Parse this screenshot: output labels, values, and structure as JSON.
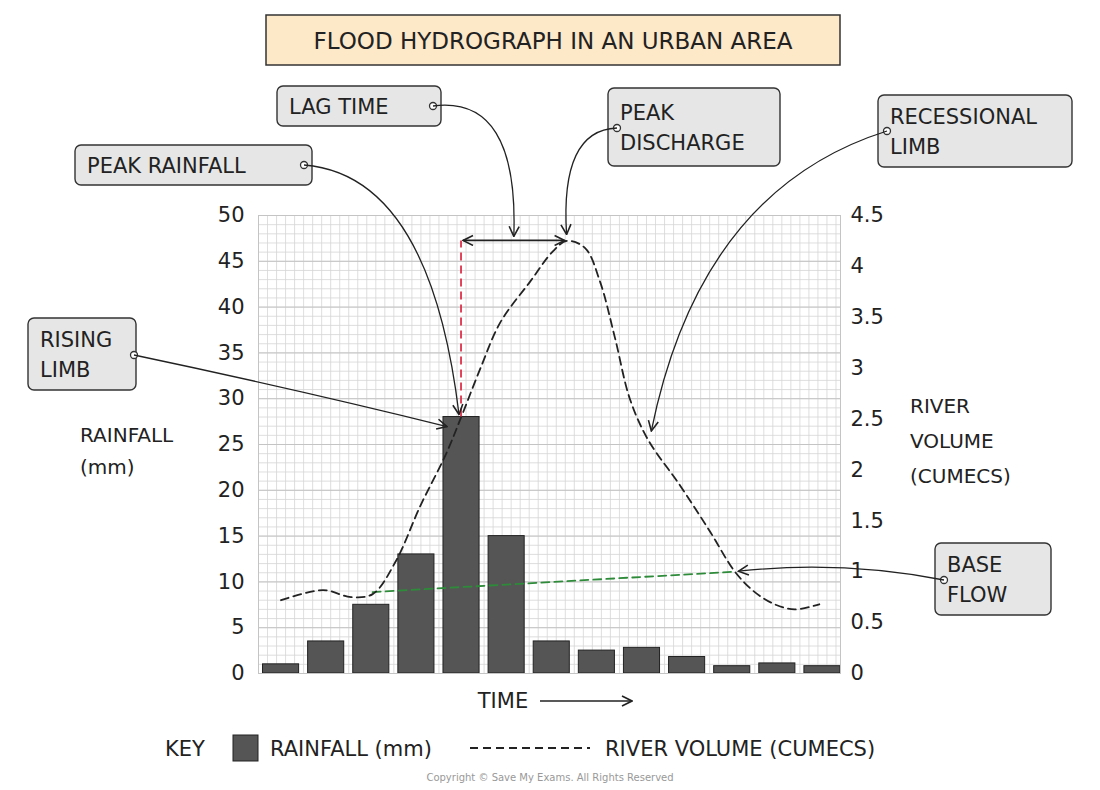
{
  "chart_data": {
    "type": "bar",
    "title": "FLOOD HYDROGRAPH IN AN URBAN AREA",
    "x_label": "TIME",
    "y_label": "RAINFALL (mm)",
    "y2_label": "RIVER VOLUME (CUMECS)",
    "categories": [
      null,
      null,
      null,
      null,
      null,
      null,
      null,
      null,
      null,
      null,
      null,
      null,
      null
    ],
    "xlim": [
      -0.5,
      12.4
    ],
    "ylim": [
      0,
      50
    ],
    "yticks": [
      0,
      5,
      10,
      15,
      20,
      25,
      30,
      35,
      40,
      45,
      50
    ],
    "y2lim": [
      0,
      4.5
    ],
    "y2ticks": [
      0,
      0.5,
      1,
      1.5,
      2,
      2.5,
      3,
      3.5,
      4,
      4.5
    ],
    "grid": true,
    "legend": "bottom",
    "legend_title": "KEY",
    "series": [
      {
        "name": "RAINFALL (mm)",
        "type": "bar",
        "color": "#555555",
        "values": [
          1,
          3.5,
          7.5,
          13,
          28,
          15,
          3.5,
          2.5,
          2.8,
          1.8,
          0.8,
          1.1,
          0.8
        ]
      },
      {
        "name": "RIVER VOLUME (CUMECS)",
        "type": "line",
        "axis": "y2",
        "color": "#222222",
        "line_style": "dashed",
        "x": [
          0,
          0.93,
          1.55,
          2.03,
          2.54,
          3.09,
          3.65,
          4.02,
          4.42,
          4.86,
          5.52,
          6.03,
          6.34,
          6.74,
          7.07,
          7.4,
          7.73,
          8.13,
          8.84,
          9.5,
          10.06,
          10.5,
          10.94,
          11.38,
          11.93
        ],
        "values": [
          0.72,
          0.82,
          0.75,
          0.78,
          1.1,
          1.65,
          2.15,
          2.55,
          3.0,
          3.45,
          3.85,
          4.15,
          4.25,
          4.18,
          3.85,
          3.3,
          2.7,
          2.3,
          1.85,
          1.4,
          1.0,
          0.8,
          0.68,
          0.63,
          0.68
        ]
      }
    ],
    "annotations": {
      "lag_time": {
        "label": "LAG TIME",
        "color": "#e0314b",
        "line_style": "dashed"
      },
      "peak_rainfall": {
        "label": "PEAK RAINFALL"
      },
      "peak_discharge": {
        "label": "PEAK\nDISCHARGE"
      },
      "recessional_limb": {
        "label": "RECESSIONAL\nLIMB"
      },
      "rising_limb": {
        "label": "RISING\nLIMB"
      },
      "base_flow": {
        "label": "BASE\nFLOW",
        "axis": "y2",
        "color": "#2e8b3a",
        "line_style": "dashed",
        "x": [
          2.03,
          10.06
        ],
        "values": [
          0.8,
          1.0
        ]
      }
    },
    "source": "Copyright © Save My Exams. All Rights Reserved"
  }
}
